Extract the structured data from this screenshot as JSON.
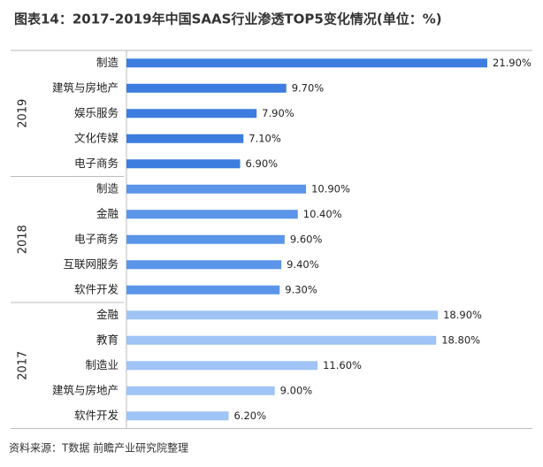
{
  "chart_data": {
    "type": "bar",
    "title": "图表14：2017-2019年中国SAAS行业渗透TOP5变化情况(单位：%)",
    "groups": [
      {
        "name": "2019",
        "color": "#3c7ddf",
        "categories": [
          "制造",
          "建筑与房地产",
          "娱乐服务",
          "文化传媒",
          "电子商务"
        ],
        "values": [
          21.9,
          9.7,
          7.9,
          7.1,
          6.9
        ],
        "value_labels": [
          "21.90%",
          "9.70%",
          "7.90%",
          "7.10%",
          "6.90%"
        ]
      },
      {
        "name": "2018",
        "color": "#5b95e9",
        "categories": [
          "制造",
          "金融",
          "电子商务",
          "互联网服务",
          "软件开发"
        ],
        "values": [
          10.9,
          10.4,
          9.6,
          9.4,
          9.3
        ],
        "value_labels": [
          "10.90%",
          "10.40%",
          "9.60%",
          "9.40%",
          "9.30%"
        ]
      },
      {
        "name": "2017",
        "color": "#9fc4f5",
        "categories": [
          "金融",
          "教育",
          "制造业",
          "建筑与房地产",
          "软件开发"
        ],
        "values": [
          18.9,
          18.8,
          11.6,
          9.0,
          6.2
        ],
        "value_labels": [
          "18.90%",
          "18.80%",
          "11.60%",
          "9.00%",
          "6.20%"
        ]
      }
    ],
    "source": "资料来源：T数据 前瞻产业研究院整理"
  }
}
